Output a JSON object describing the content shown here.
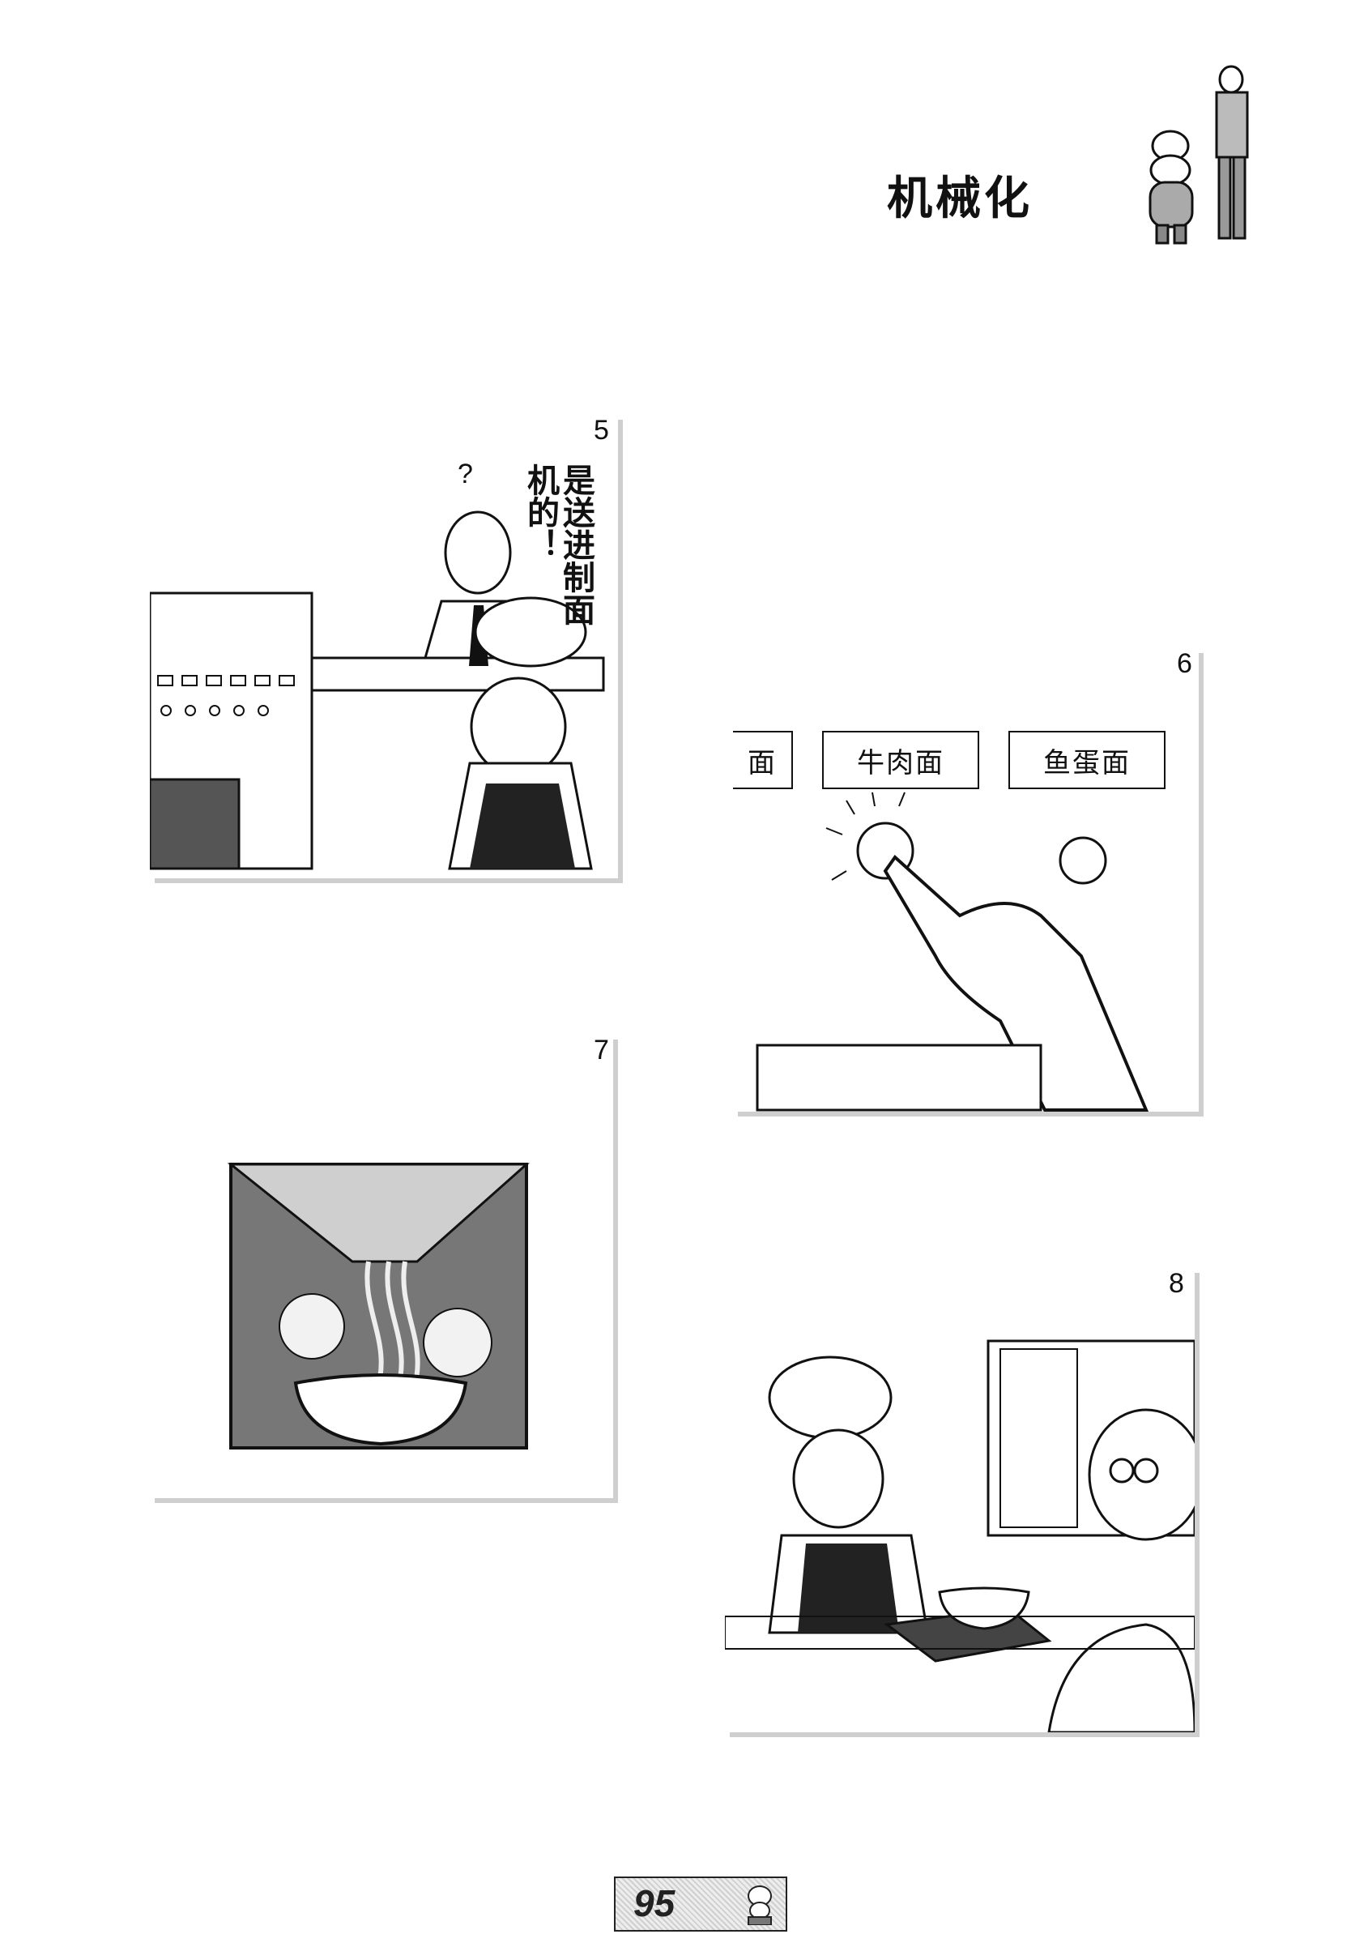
{
  "page": {
    "title": "机械化",
    "page_number": "95"
  },
  "panels": [
    {
      "number": "5",
      "speech": "是送进制面机的！",
      "question_mark": "?"
    },
    {
      "number": "6",
      "signs": [
        "面",
        "牛肉面",
        "鱼蛋面"
      ]
    },
    {
      "number": "7"
    },
    {
      "number": "8"
    }
  ]
}
